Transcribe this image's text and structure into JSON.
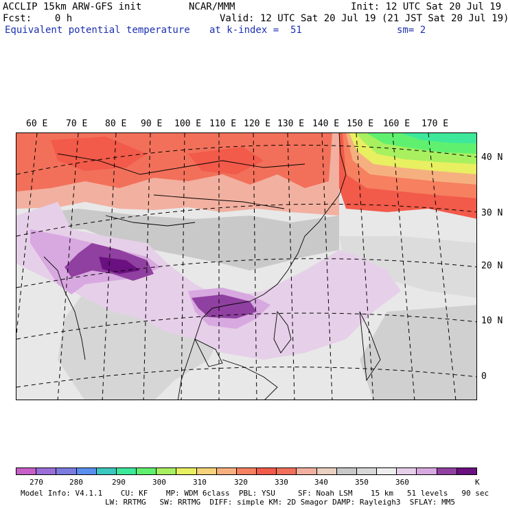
{
  "header": {
    "line1_left": "ACCLIP 15km ARW-GFS init",
    "line1_center": "NCAR/MMM",
    "line1_right": "Init: 12 UTC Sat 20 Jul 19",
    "line2_left": "Fcst:    0 h",
    "line2_right": "Valid: 12 UTC Sat 20 Jul 19 (21 JST Sat 20 Jul 19)",
    "line3_left": "Equivalent potential temperature",
    "line3_center": "at k-index =  51",
    "line3_right": "sm= 2"
  },
  "map": {
    "lon_labels": [
      "60 E",
      "70 E",
      "80 E",
      "90 E",
      "100 E",
      "110 E",
      "120 E",
      "130 E",
      "140 E",
      "150 E",
      "160 E",
      "170 E"
    ],
    "lat_labels": [
      "40 N",
      "30 N",
      "20 N",
      "10 N",
      "0"
    ]
  },
  "colorbar": {
    "colors": [
      "#c65fc8",
      "#9a6ed6",
      "#7b7be0",
      "#5a8ff0",
      "#3ac8c0",
      "#3de89a",
      "#60f070",
      "#a8f060",
      "#e8ef60",
      "#f6d27a",
      "#f6b080",
      "#f68060",
      "#f25a4a",
      "#f2705a",
      "#f2b0a0",
      "#ead0c0",
      "#c8c8c8",
      "#d8d8d8",
      "#eeeeee",
      "#e6cfe8",
      "#d8a8e0",
      "#9040a0",
      "#6a1080"
    ],
    "labels": [
      "270",
      "280",
      "290",
      "300",
      "310",
      "320",
      "330",
      "340",
      "350",
      "360",
      "K"
    ]
  },
  "footer": {
    "line1": "Model Info: V4.1.1    CU: KF    MP: WDM 6class  PBL: YSU     SF: Noah LSM    15 km   51 levels   90 sec",
    "line2": "LW: RRTMG   SW: RRTMG  DIFF: simple KM: 2D Smagor DAMP: Rayleigh3  SFLAY: MM5"
  }
}
